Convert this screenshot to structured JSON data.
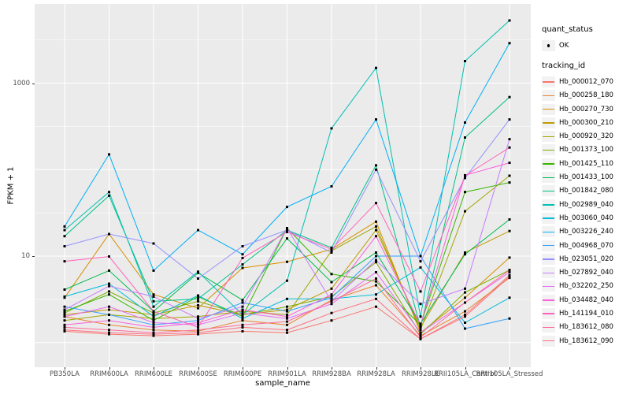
{
  "axes": {
    "y_label": "FPKM + 1",
    "x_label": "sample_name",
    "y_ticks": [
      {
        "label": "1000",
        "log10": 3
      },
      {
        "label": "10",
        "log10": 1
      }
    ],
    "y_major_gridline_logs": [
      0,
      1,
      2,
      3
    ],
    "y_minor_gridline_logs": [
      0.5,
      1.5,
      2.5,
      3.5
    ]
  },
  "style": {
    "panel_bg": "#EBEBEB",
    "grid_color": "#FFFFFF",
    "tick_color": "#333333",
    "tick_label_color": "#4D4D4D",
    "point_color": "#000000",
    "legend_key_bg": "#F2F2F2"
  },
  "legend": {
    "quant_status_title": "quant_status",
    "quant_status_value": "OK",
    "tracking_title": "tracking_id"
  },
  "chart_data": {
    "type": "line",
    "scale_y": "log10",
    "grid": true,
    "legend_position": "right",
    "xlabel": "sample_name",
    "ylabel": "FPKM + 1",
    "y_axis_labeled_ticks": [
      10,
      1000
    ],
    "ylim_approx": [
      1,
      5500
    ],
    "point_marker": "black point (quant_status = OK) at every sample",
    "categories": [
      "PB350LA",
      "RRIM600LA",
      "RRIM600LE",
      "RRIM600SE",
      "RRIM600PE",
      "RRIM901LA",
      "RRIM928BA",
      "RRIM928LA",
      "RRIM928LE",
      "RRII105LA_Control",
      "RRII105LA_Stressed"
    ],
    "series": [
      {
        "tracking_id": "Hb_000012_070",
        "quant_status": "OK",
        "color": "#F8766D",
        "values": [
          1.35,
          1.25,
          1.2,
          1.25,
          1.35,
          1.3,
          1.8,
          2.6,
          1.1,
          2.1,
          6.0
        ]
      },
      {
        "tracking_id": "Hb_000258_180",
        "quant_status": "OK",
        "color": "#EA8331",
        "values": [
          2.0,
          1.6,
          1.4,
          1.35,
          1.8,
          1.6,
          3.1,
          4.6,
          1.2,
          2.3,
          5.6
        ]
      },
      {
        "tracking_id": "Hb_000270_730",
        "quant_status": "OK",
        "color": "#D89000",
        "values": [
          3.3,
          18,
          3.6,
          2.5,
          7.3,
          8.6,
          12,
          25,
          1.3,
          3.3,
          9.6
        ]
      },
      {
        "tracking_id": "Hb_000300_210",
        "quant_status": "OK",
        "color": "#C09B00",
        "values": [
          2.1,
          2.4,
          2.1,
          2.7,
          2.1,
          2.4,
          4.2,
          20,
          1.5,
          11,
          19.5
        ]
      },
      {
        "tracking_id": "Hb_000920_320",
        "quant_status": "OK",
        "color": "#A3A500",
        "values": [
          1.8,
          2.1,
          1.9,
          2.0,
          2.3,
          2.1,
          11.5,
          22,
          1.4,
          33,
          85
        ]
      },
      {
        "tracking_id": "Hb_001373_100",
        "quant_status": "OK",
        "color": "#7CAE00",
        "values": [
          2.2,
          3.9,
          2.2,
          3.0,
          2.1,
          2.6,
          3.4,
          8.5,
          1.25,
          3.8,
          6.9
        ]
      },
      {
        "tracking_id": "Hb_001425_110",
        "quant_status": "OK",
        "color": "#39B600",
        "values": [
          2.3,
          3.6,
          1.8,
          3.4,
          2.0,
          21,
          6.2,
          5.1,
          1.6,
          55,
          71
        ]
      },
      {
        "tracking_id": "Hb_001433_100",
        "quant_status": "OK",
        "color": "#00BB4E",
        "values": [
          4.1,
          6.8,
          2.3,
          6.4,
          3.1,
          16,
          5.0,
          11,
          1.65,
          10.5,
          26.5
        ]
      },
      {
        "tracking_id": "Hb_001842_080",
        "quant_status": "OK",
        "color": "#00C087",
        "values": [
          17,
          50,
          3.0,
          3.2,
          8.0,
          20,
          12.5,
          112,
          1.5,
          235,
          690
        ]
      },
      {
        "tracking_id": "Hb_002989_040",
        "quant_status": "OK",
        "color": "#00C0B2",
        "values": [
          20,
          55,
          2.6,
          6.6,
          2.1,
          5.2,
          300,
          1500,
          2.0,
          1800,
          5300
        ]
      },
      {
        "tracking_id": "Hb_003060_040",
        "quant_status": "OK",
        "color": "#00BCD8",
        "values": [
          3.4,
          4.8,
          2.0,
          3.5,
          1.9,
          3.2,
          3.2,
          3.6,
          7.4,
          1.7,
          3.3
        ]
      },
      {
        "tracking_id": "Hb_003226_240",
        "quant_status": "OK",
        "color": "#00B0F6",
        "values": [
          22,
          150,
          6.8,
          20,
          10.5,
          37,
          64,
          380,
          10,
          350,
          2900
        ]
      },
      {
        "tracking_id": "Hb_004968_070",
        "quant_status": "OK",
        "color": "#35A2FF",
        "values": [
          2.6,
          2.1,
          1.6,
          1.8,
          2.9,
          2.3,
          3.3,
          10,
          10,
          1.45,
          1.9
        ]
      },
      {
        "tracking_id": "Hb_023051_020",
        "quant_status": "OK",
        "color": "#9590FF",
        "values": [
          13,
          18,
          14,
          5.5,
          13,
          20,
          11,
          100,
          8.7,
          80,
          380
        ]
      },
      {
        "tracking_id": "Hb_027892_040",
        "quant_status": "OK",
        "color": "#C77CFF",
        "values": [
          2.4,
          4.5,
          3.4,
          1.9,
          2.6,
          21,
          3.0,
          9.0,
          2.8,
          4.2,
          225
        ]
      },
      {
        "tracking_id": "Hb_032202_250",
        "quant_status": "OK",
        "color": "#E76BF3",
        "values": [
          2.0,
          2.6,
          1.7,
          1.6,
          2.2,
          1.9,
          2.8,
          6.5,
          1.3,
          2.9,
          6.5
        ]
      },
      {
        "tracking_id": "Hb_034482_040",
        "quant_status": "OK",
        "color": "#FA62DB",
        "values": [
          1.6,
          1.8,
          1.5,
          1.7,
          2.4,
          2.0,
          3.6,
          17,
          1.6,
          86,
          120
        ]
      },
      {
        "tracking_id": "Hb_141194_010",
        "quant_status": "OK",
        "color": "#FF62BC",
        "values": [
          8.7,
          9.9,
          2.3,
          1.5,
          9.5,
          19,
          12,
          41,
          3.9,
          85,
          180
        ]
      },
      {
        "tracking_id": "Hb_183612_080",
        "quant_status": "OK",
        "color": "#FF6A98",
        "values": [
          1.5,
          1.4,
          1.3,
          1.4,
          1.6,
          1.75,
          3.0,
          5.5,
          1.15,
          2.9,
          6.9
        ]
      },
      {
        "tracking_id": "Hb_183612_090",
        "quant_status": "OK",
        "color": "#FE6E80",
        "values": [
          1.4,
          1.3,
          1.25,
          1.3,
          1.5,
          1.4,
          2.2,
          3.2,
          1.1,
          2.0,
          5.8
        ]
      }
    ]
  }
}
